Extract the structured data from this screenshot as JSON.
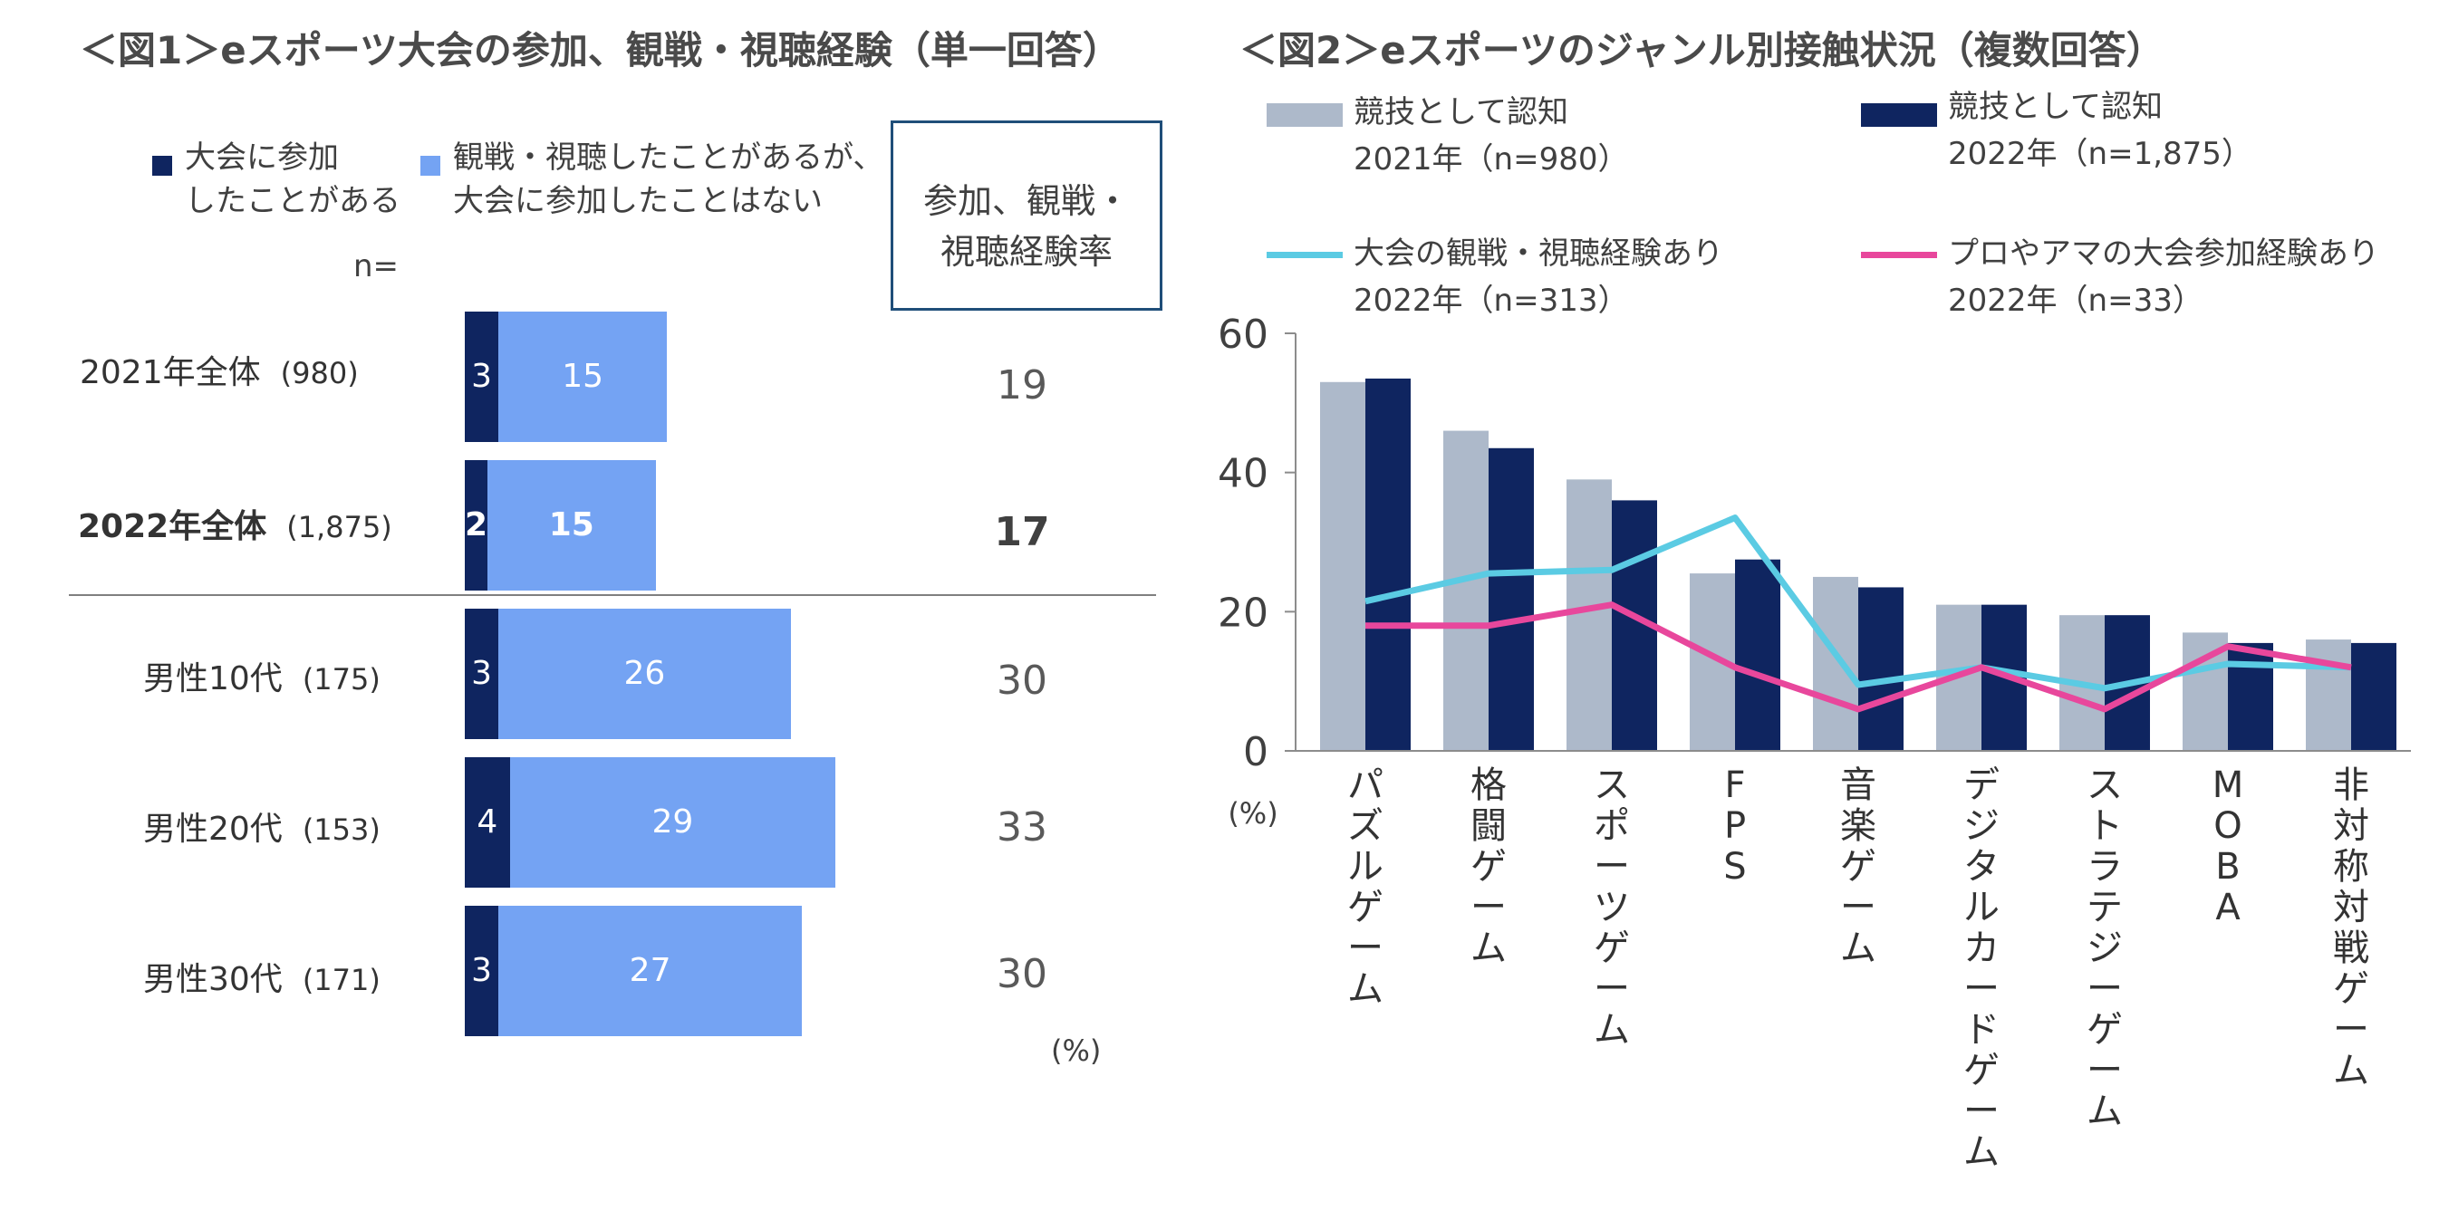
{
  "fig1": {
    "title": "＜図1＞eスポーツ大会の参加、観戦・視聴経験（単一回答）",
    "legend": [
      {
        "label": "大会に参加したことがある",
        "line1": "大会に参加",
        "line2": "したことがある",
        "color": "#0f2560"
      },
      {
        "label": "観戦・視聴したことがあるが、大会に参加したことはない",
        "line1": "観戦・視聴したことがあるが、",
        "line2": "大会に参加したことはない",
        "color": "#74a3f3"
      }
    ],
    "n_label": "n=",
    "rate_header": {
      "line1": "参加、観戦・",
      "line2": "視聴経験率"
    },
    "unit": "(%)",
    "chart_data": {
      "type": "bar",
      "orientation": "horizontal",
      "stacked": true,
      "categories": [
        "2021年全体",
        "2022年全体",
        "男性10代",
        "男性20代",
        "男性30代"
      ],
      "sample_sizes": [
        "(980)",
        "(1,875)",
        "(175)",
        "(153)",
        "(171)"
      ],
      "series": [
        {
          "name": "大会に参加したことがある",
          "values": [
            3,
            2,
            3,
            4,
            3
          ]
        },
        {
          "name": "観戦・視聴したことがあるが、大会に参加したことはない",
          "values": [
            15,
            15,
            26,
            29,
            27
          ]
        }
      ],
      "rates": [
        19,
        17,
        30,
        33,
        30
      ],
      "highlight_index": 1,
      "xlim": [
        0,
        35
      ]
    }
  },
  "fig2": {
    "title": "＜図2＞eスポーツのジャンル別接触状況（複数回答）",
    "legend": [
      {
        "line1": "競技として認知",
        "line2": "2021年（n=980）",
        "color": "#adb9ca",
        "kind": "bar"
      },
      {
        "line1": "競技として認知",
        "line2": "2022年（n=1,875）",
        "color": "#0f2560",
        "kind": "bar"
      },
      {
        "line1": "大会の観戦・視聴経験あり",
        "line2": "2022年（n=313）",
        "color": "#5bcbe3",
        "kind": "line"
      },
      {
        "line1": "プロやアマの大会参加経験あり",
        "line2": "2022年（n=33）",
        "color": "#e8479c",
        "kind": "line"
      }
    ],
    "unit": "(%)",
    "chart_data": {
      "type": "bar",
      "categories": [
        "パズルゲーム",
        "格闘ゲーム",
        "スポーツゲーム",
        "FPS",
        "音楽ゲーム",
        "デジタルカードゲーム",
        "ストラテジーゲーム",
        "MOBA",
        "非対称対戦ゲーム"
      ],
      "series": [
        {
          "name": "競技として認知 2021年（n=980）",
          "type": "bar",
          "values": [
            53,
            46,
            39,
            25.5,
            25,
            21,
            19.5,
            17,
            16
          ]
        },
        {
          "name": "競技として認知 2022年（n=1,875）",
          "type": "bar",
          "values": [
            53.5,
            43.5,
            36,
            27.5,
            23.5,
            21,
            19.5,
            15.5,
            15.5
          ]
        },
        {
          "name": "大会の観戦・視聴経験あり 2022年（n=313）",
          "type": "line",
          "values": [
            21.5,
            25.5,
            26,
            33.5,
            9.5,
            12,
            9,
            12.5,
            12
          ]
        },
        {
          "name": "プロやアマの大会参加経験あり 2022年（n=33）",
          "type": "line",
          "values": [
            18,
            18,
            21,
            12,
            6,
            12,
            6,
            15,
            12
          ]
        }
      ],
      "yticks": [
        "0",
        "20",
        "40",
        "60"
      ],
      "ylim": [
        0,
        60
      ],
      "ylabel": "(%)"
    }
  }
}
